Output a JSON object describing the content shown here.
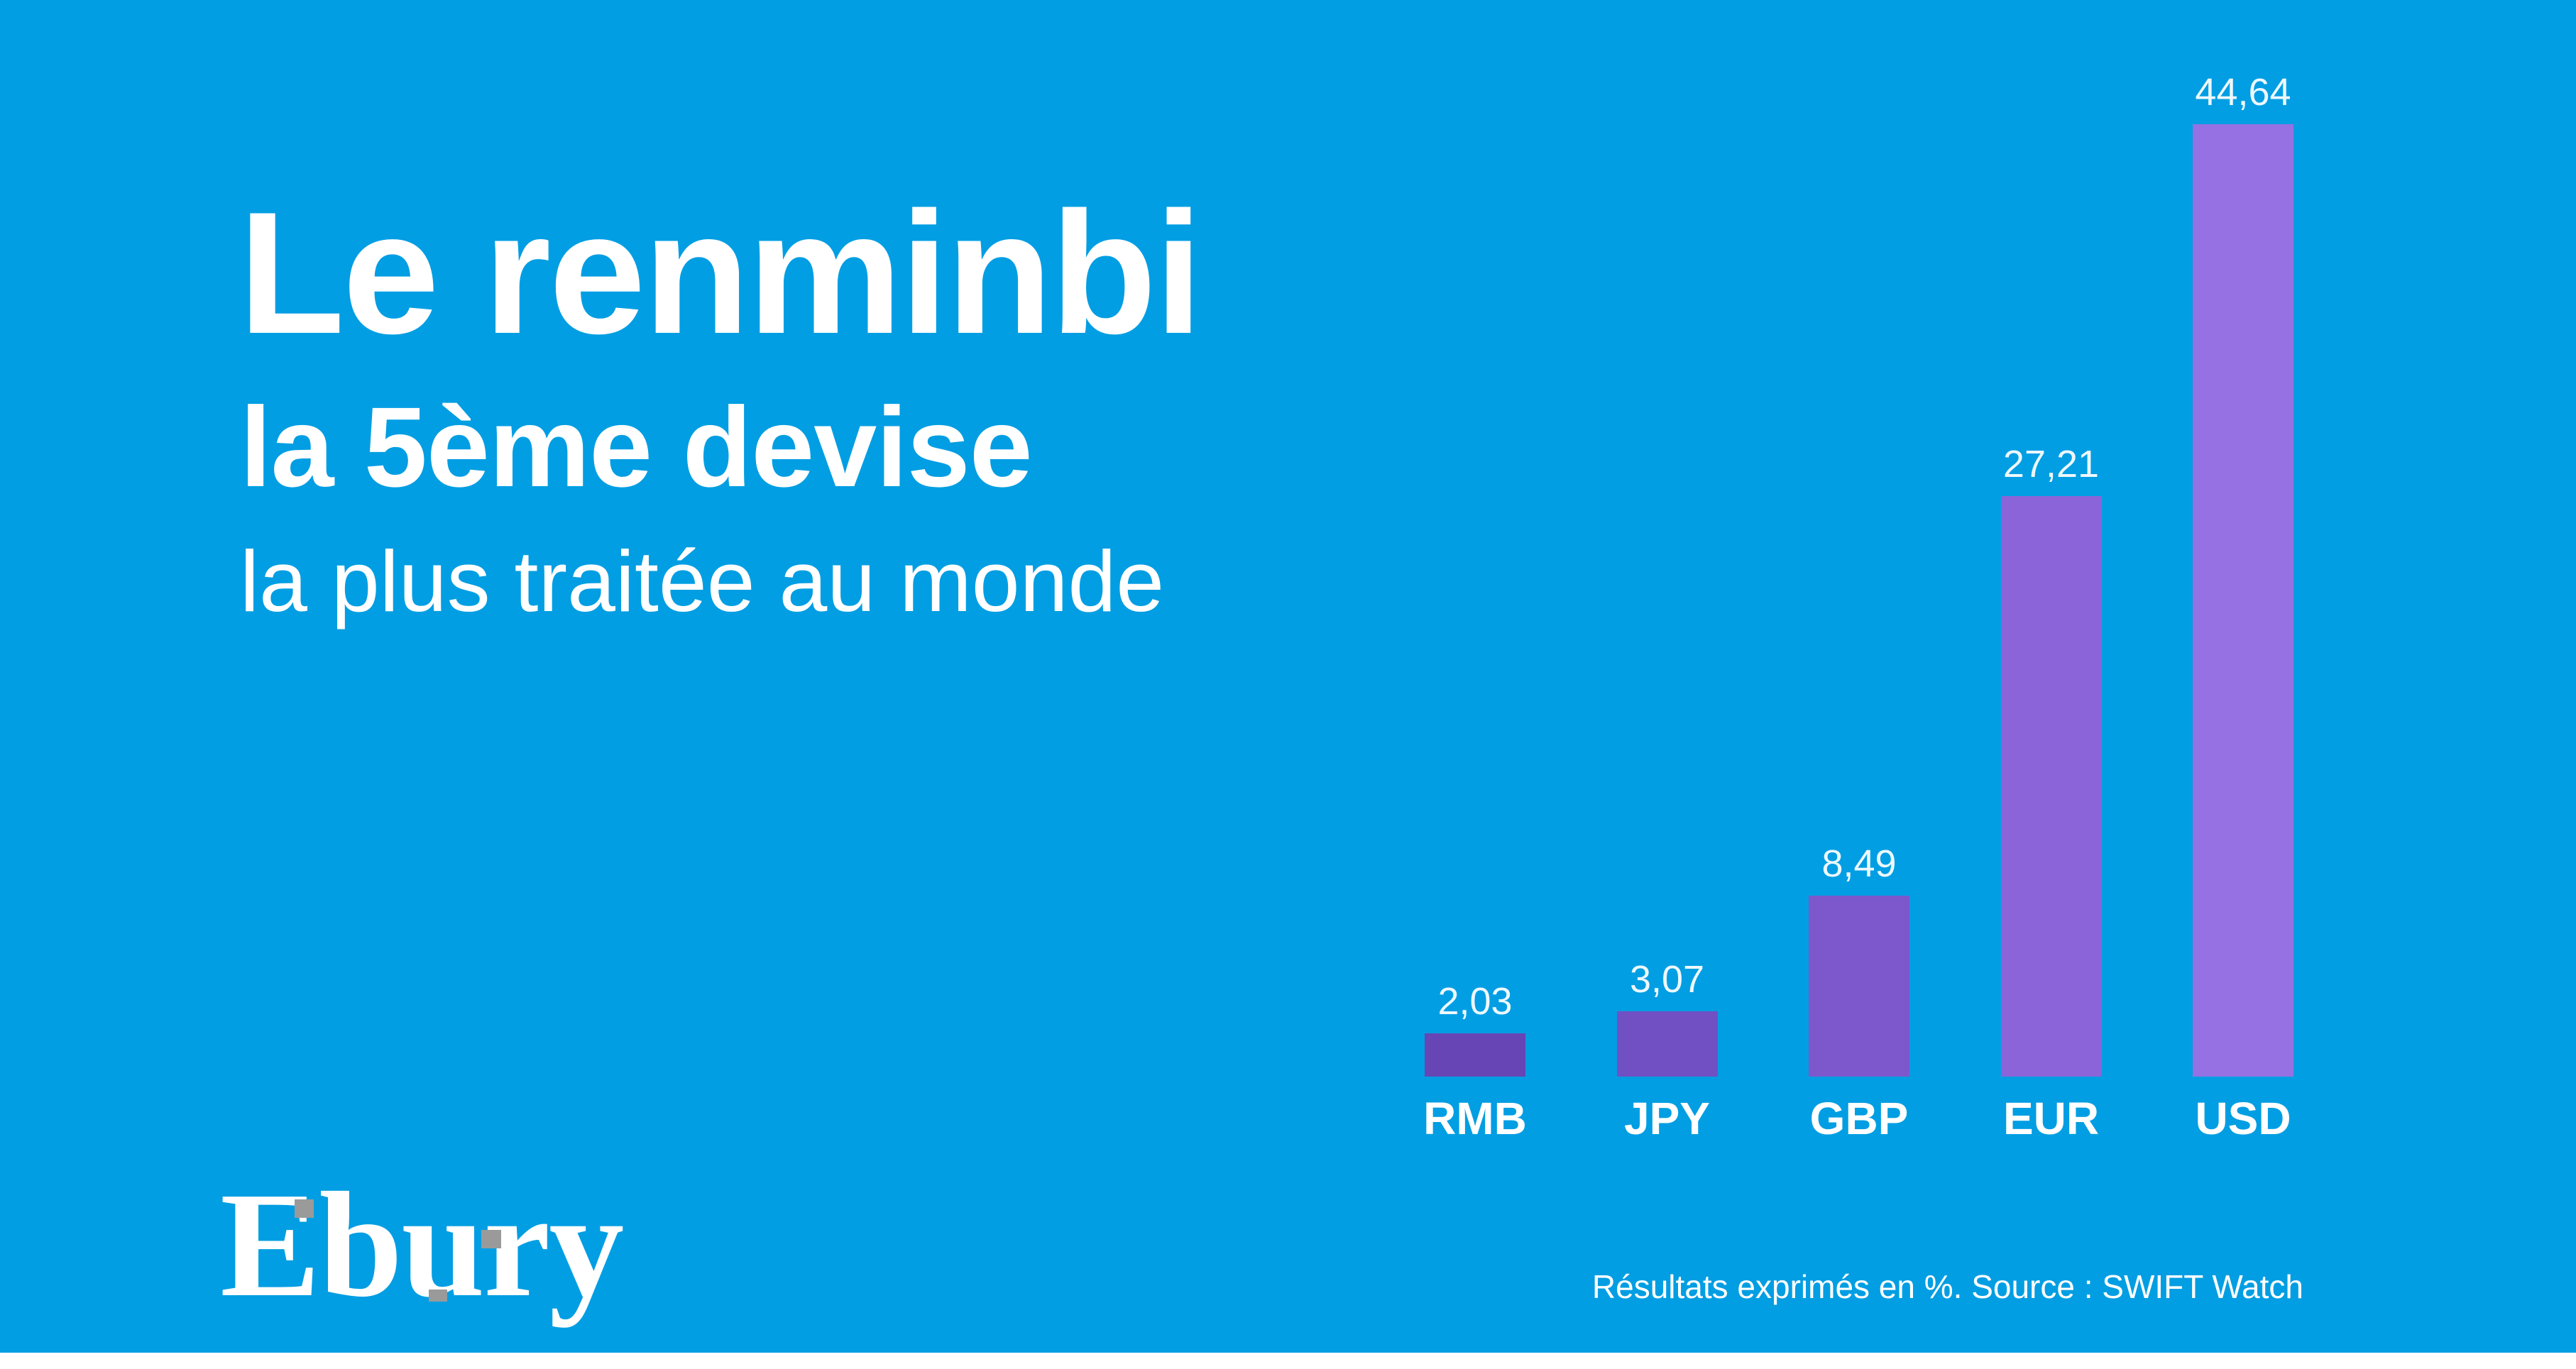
{
  "colors": {
    "background_blue": "#029EE3",
    "text_white": "#FFFFFF",
    "logo_pixel_gray": "#9A9A9A",
    "footer_strip_white": "#FFFFFF"
  },
  "title": {
    "line1": "Le renminbi",
    "line2": "la 5ème devise",
    "line3": "la plus traitée au monde"
  },
  "logo": {
    "text": "Ebury"
  },
  "footnote": "Résultats exprimés en %. Source : SWIFT Watch",
  "chart_data": {
    "type": "bar",
    "title": "",
    "xlabel": "",
    "ylabel": "",
    "unit": "%",
    "grid": false,
    "axes_visible": false,
    "ylim": [
      0,
      47
    ],
    "categories": [
      "RMB",
      "JPY",
      "GBP",
      "EUR",
      "USD"
    ],
    "values": [
      2.03,
      3.07,
      8.49,
      27.21,
      44.64
    ],
    "value_labels": [
      "2,03",
      "3,07",
      "8,49",
      "27,21",
      "44,64"
    ],
    "bar_colors": [
      "#6745B5",
      "#7150C4",
      "#7D58CC",
      "#8A64D8",
      "#9571E3"
    ],
    "value_label_position": "above-bar",
    "category_label_position": "below-bar"
  }
}
